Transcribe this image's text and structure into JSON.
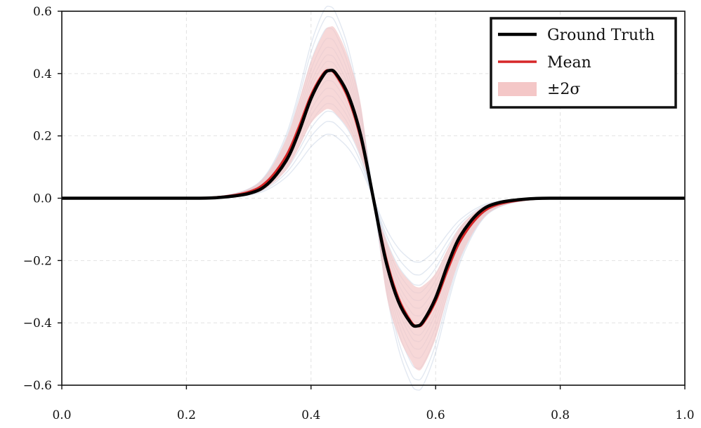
{
  "chart_data": {
    "type": "line",
    "title": "",
    "xlabel": "",
    "ylabel": "",
    "xlim": [
      0.0,
      1.0
    ],
    "ylim": [
      -0.6,
      0.6
    ],
    "grid": true,
    "legend_position": "top-right",
    "x_ticks": [
      "0.0",
      "0.2",
      "0.4",
      "0.6",
      "0.8",
      "1.0"
    ],
    "y_ticks": [
      "−0.6",
      "−0.4",
      "−0.2",
      "0.0",
      "0.2",
      "0.4",
      "0.6"
    ],
    "x": [
      0.0,
      0.1,
      0.2,
      0.25,
      0.3,
      0.33,
      0.36,
      0.38,
      0.4,
      0.42,
      0.43,
      0.44,
      0.46,
      0.48,
      0.5,
      0.52,
      0.54,
      0.56,
      0.57,
      0.58,
      0.6,
      0.62,
      0.64,
      0.67,
      0.7,
      0.75,
      0.8,
      0.9,
      1.0
    ],
    "series": [
      {
        "name": "Ground Truth",
        "color": "#000000",
        "values": [
          0.0,
          0.0,
          0.0,
          0.002,
          0.015,
          0.045,
          0.12,
          0.21,
          0.32,
          0.395,
          0.41,
          0.4,
          0.33,
          0.2,
          0.0,
          -0.2,
          -0.33,
          -0.4,
          -0.41,
          -0.395,
          -0.32,
          -0.21,
          -0.12,
          -0.045,
          -0.015,
          -0.002,
          0.0,
          0.0,
          0.0
        ]
      },
      {
        "name": "Mean",
        "color": "#d62728",
        "values": [
          0.0,
          0.0,
          0.0,
          0.003,
          0.02,
          0.055,
          0.135,
          0.225,
          0.33,
          0.4,
          0.41,
          0.395,
          0.32,
          0.19,
          0.0,
          -0.19,
          -0.32,
          -0.395,
          -0.41,
          -0.4,
          -0.33,
          -0.225,
          -0.135,
          -0.055,
          -0.02,
          -0.003,
          0.0,
          0.0,
          0.0
        ]
      }
    ],
    "band": {
      "name": "±2σ",
      "color": "#f4c7c7",
      "lower": [
        0.0,
        0.0,
        0.0,
        0.0,
        0.01,
        0.035,
        0.09,
        0.16,
        0.24,
        0.28,
        0.285,
        0.27,
        0.22,
        0.13,
        0.0,
        -0.3,
        -0.44,
        -0.52,
        -0.55,
        -0.54,
        -0.45,
        -0.31,
        -0.19,
        -0.08,
        -0.03,
        -0.005,
        0.0,
        0.0,
        0.0
      ],
      "upper": [
        0.0,
        0.0,
        0.0,
        0.005,
        0.03,
        0.08,
        0.19,
        0.31,
        0.44,
        0.53,
        0.55,
        0.54,
        0.45,
        0.3,
        0.0,
        -0.13,
        -0.22,
        -0.27,
        -0.285,
        -0.28,
        -0.24,
        -0.16,
        -0.09,
        -0.035,
        -0.01,
        -0.0,
        0.0,
        0.0,
        0.0
      ]
    },
    "samples_color": "#4a6fa5"
  }
}
